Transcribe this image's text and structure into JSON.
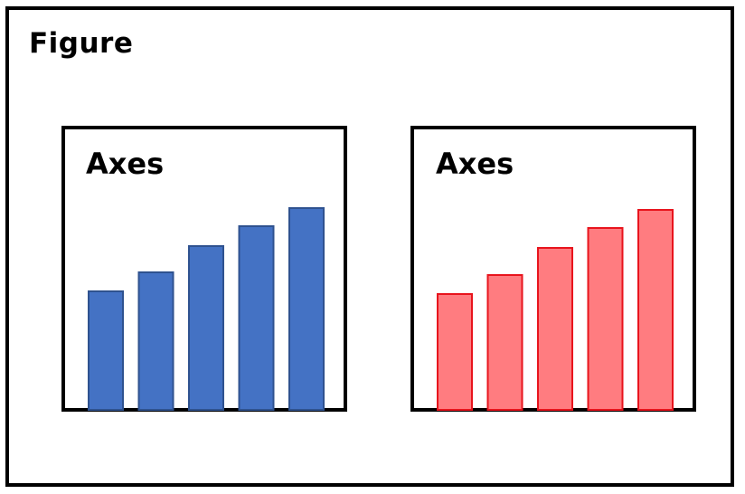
{
  "figure": {
    "title": "Figure"
  },
  "axes": [
    {
      "title": "Axes",
      "bar_fill": "#4472c4",
      "bar_stroke": "#2f528f",
      "values": [
        129,
        150,
        179,
        201,
        221
      ]
    },
    {
      "title": "Axes",
      "bar_fill": "#ff7c80",
      "bar_stroke": "#e8141d",
      "values": [
        126,
        147,
        177,
        199,
        219
      ]
    }
  ]
}
